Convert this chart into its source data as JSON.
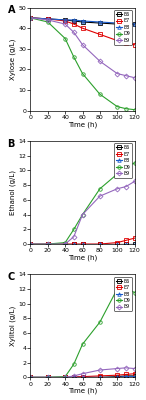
{
  "time": [
    0,
    20,
    40,
    50,
    60,
    80,
    100,
    110,
    120
  ],
  "xylose": {
    "E6": [
      45,
      44.5,
      44,
      43.5,
      43,
      42.5,
      42,
      42,
      42
    ],
    "E7": [
      45,
      44.5,
      43.5,
      42,
      40,
      37,
      34,
      33,
      32
    ],
    "E8": [
      45,
      44.5,
      44,
      44,
      43.5,
      43,
      42.5,
      42.5,
      42
    ],
    "D9": [
      45,
      43,
      35,
      26,
      18,
      8,
      2,
      1,
      0.5
    ],
    "E9": [
      45,
      44,
      42,
      38,
      32,
      24,
      18,
      17,
      16
    ]
  },
  "ethanol": {
    "E6": [
      0,
      0,
      0,
      0,
      0,
      0,
      0,
      0,
      0
    ],
    "E7": [
      0,
      0,
      0,
      0,
      0,
      0,
      0.2,
      0.5,
      0.8
    ],
    "E8": [
      0,
      0,
      0,
      0,
      0,
      0,
      0,
      0,
      0
    ],
    "D9": [
      0,
      0,
      0.2,
      2.0,
      4.0,
      7.5,
      9.5,
      10.5,
      11.0
    ],
    "E9": [
      0,
      0,
      0,
      1.0,
      4.0,
      6.5,
      7.5,
      7.8,
      8.5
    ]
  },
  "xylitol": {
    "E6": [
      0,
      0,
      0,
      0,
      0,
      0,
      0.1,
      0.2,
      0.2
    ],
    "E7": [
      0,
      0,
      0,
      0.1,
      0.1,
      0.2,
      0.3,
      0.4,
      0.5
    ],
    "E8": [
      0,
      0,
      0,
      0,
      0,
      0,
      0,
      0.1,
      0.1
    ],
    "D9": [
      0,
      0,
      0.1,
      1.8,
      4.5,
      7.5,
      12.0,
      12.2,
      11.5
    ],
    "E9": [
      0,
      0,
      0,
      0.2,
      0.5,
      1.0,
      1.2,
      1.3,
      1.2
    ]
  },
  "colors": {
    "E6": "#000000",
    "E7": "#e00000",
    "E8": "#1a5ccc",
    "D9": "#2ca02c",
    "E9": "#9467bd"
  },
  "markers": {
    "E6": "s",
    "E7": "s",
    "E8": "^",
    "D9": "o",
    "E9": "D"
  },
  "xylose_ylim": [
    0,
    50
  ],
  "ethanol_ylim": [
    0,
    14
  ],
  "xylitol_ylim": [
    0,
    14
  ],
  "xylose_yticks": [
    0,
    10,
    20,
    30,
    40,
    50
  ],
  "ethanol_yticks": [
    0,
    2,
    4,
    6,
    8,
    10,
    12,
    14
  ],
  "xylitol_yticks": [
    0,
    2,
    4,
    6,
    8,
    10,
    12,
    14
  ],
  "xticks": [
    0,
    20,
    40,
    60,
    80,
    100,
    120
  ],
  "xlabel": "Time (h)",
  "ylabel_xylose": "Xylose (g/L)",
  "ylabel_ethanol": "Ethanol (g/L)",
  "ylabel_xylitol": "Xylitol (g/L)",
  "panel_labels": [
    "A",
    "B",
    "C"
  ],
  "series_order": [
    "E6",
    "E7",
    "E8",
    "D9",
    "E9"
  ]
}
